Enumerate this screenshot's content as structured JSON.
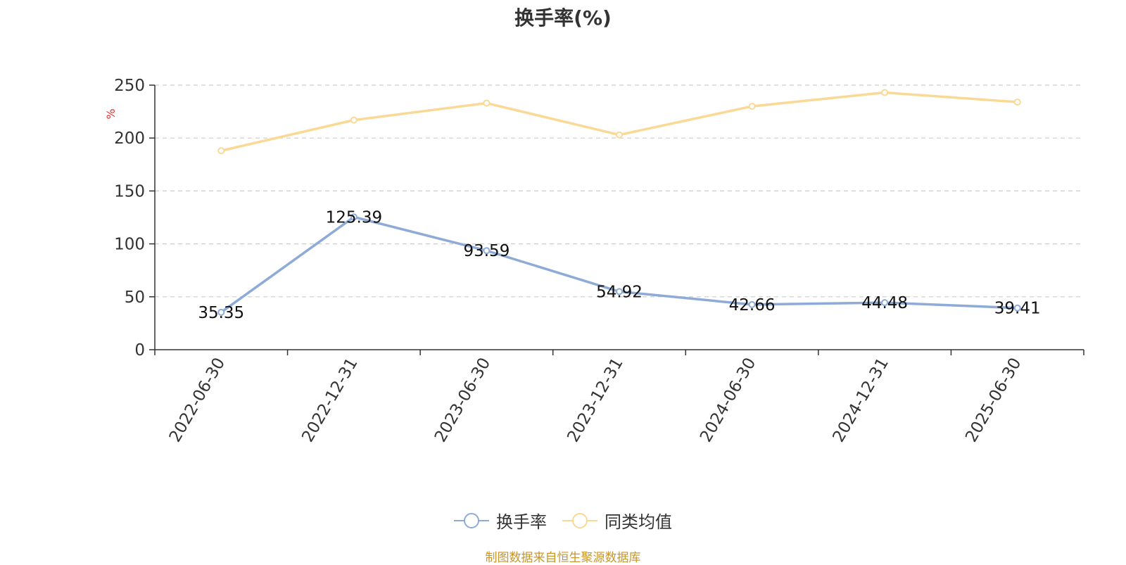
{
  "title": "换手率(%)",
  "source_note": "制图数据来自恒生聚源数据库",
  "colors": {
    "series_turnover": "#8eabd8",
    "series_peer_avg": "#fad996",
    "unit_label": "#e0312f",
    "grid": "#cccccc",
    "axis": "#333333",
    "source_note": "#c8962a"
  },
  "chart_data": {
    "type": "line",
    "title": "换手率(%)",
    "ylabel": "%",
    "xlabel": "",
    "ylim": [
      0,
      250
    ],
    "yticks": [
      0,
      50,
      100,
      150,
      200,
      250
    ],
    "grid": true,
    "legend_position": "bottom-center",
    "categories": [
      "2022-06-30",
      "2022-12-31",
      "2023-06-30",
      "2023-12-31",
      "2024-06-30",
      "2024-12-31",
      "2025-06-30"
    ],
    "series": [
      {
        "name": "换手率",
        "values": [
          35.35,
          125.39,
          93.59,
          54.92,
          42.66,
          44.48,
          39.41
        ],
        "data_labels": [
          "35.35",
          "125.39",
          "93.59",
          "54.92",
          "42.66",
          "44.48",
          "39.41"
        ]
      },
      {
        "name": "同类均值",
        "values": [
          188,
          217,
          233,
          203,
          230,
          243,
          234
        ]
      }
    ]
  }
}
